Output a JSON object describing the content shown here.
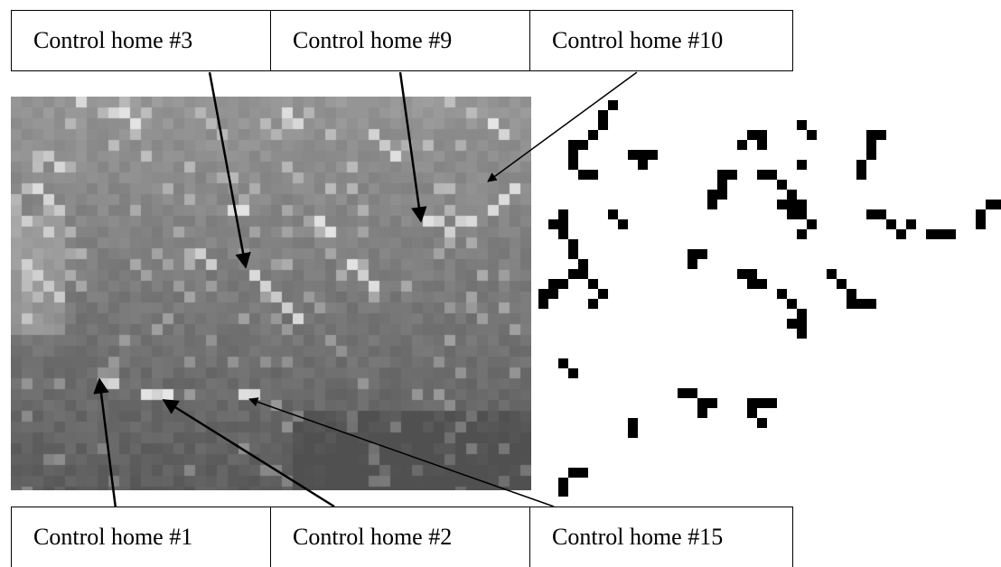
{
  "labels_top": [
    "Control home #3",
    "Control home #9",
    "Control home #10"
  ],
  "labels_bottom": [
    "Control home #1",
    "Control home #2",
    "Control home #15"
  ],
  "colors": {
    "border": "#000000",
    "mask_fill": "#000000",
    "background": "#ffffff"
  }
}
